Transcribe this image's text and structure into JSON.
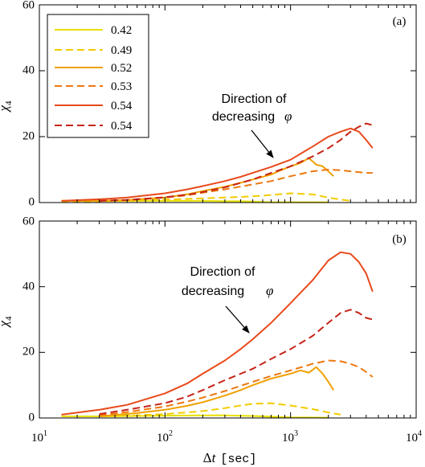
{
  "chart_data": [
    {
      "type": "line",
      "panel_label": "(a)",
      "xlabel_delta": "Δ",
      "xlabel_var": "t",
      "xlabel_unit": "[sec]",
      "ylabel_main": "χ",
      "ylabel_sub": "4",
      "x_scale": "log",
      "xlim": [
        10,
        10000
      ],
      "ylim": [
        0,
        60
      ],
      "yticks": [
        "0",
        "20",
        "40",
        "60"
      ],
      "xticks_base": [
        "10",
        "10",
        "10",
        "10"
      ],
      "xticks_exp": [
        "1",
        "2",
        "3",
        "4"
      ],
      "grid": false,
      "legend_placement": "top-left",
      "annotation": {
        "line1": "Direction of",
        "line2": "decreasing",
        "symbol": "φ"
      },
      "series": [
        {
          "name": "0.42",
          "color": "#e8e000",
          "dash": false,
          "x": [
            15,
            30,
            60,
            100,
            150,
            200,
            300,
            400,
            500,
            600,
            700,
            1000,
            2000
          ],
          "y": [
            0.5,
            0.5,
            0.5,
            0.5,
            0.5,
            0.5,
            0.4,
            0.4,
            0.3,
            0.2,
            0.1,
            0.1,
            0.1
          ]
        },
        {
          "name": "0.49",
          "color": "#f2cc00",
          "dash": true,
          "x": [
            15,
            30,
            60,
            100,
            150,
            200,
            300,
            500,
            700,
            1000,
            1500,
            2000,
            2500,
            3000
          ],
          "y": [
            0.3,
            0.4,
            0.6,
            0.9,
            1.1,
            1.3,
            1.5,
            1.9,
            2.3,
            2.8,
            2.5,
            1.5,
            0.9,
            0.5
          ]
        },
        {
          "name": "0.52",
          "color": "#f0a000",
          "dash": false,
          "x": [
            15,
            30,
            50,
            100,
            150,
            200,
            300,
            400,
            500,
            700,
            800,
            1000,
            1200,
            1400,
            1600,
            1800,
            2000,
            2200
          ],
          "y": [
            0.5,
            0.5,
            0.8,
            1.5,
            2.5,
            3.5,
            4.8,
            6,
            7,
            8.5,
            9.5,
            11,
            12,
            13.5,
            11.5,
            11,
            9.5,
            8
          ]
        },
        {
          "name": "0.53",
          "color": "#ec7810",
          "dash": true,
          "x": [
            30,
            50,
            100,
            150,
            200,
            300,
            500,
            700,
            1000,
            1500,
            2000,
            2500,
            3000,
            4000,
            4500
          ],
          "y": [
            0.5,
            0.7,
            1.5,
            2.2,
            3,
            4,
            5.5,
            6.5,
            8,
            9.5,
            10,
            9.8,
            9.5,
            9,
            9
          ]
        },
        {
          "name": "0.54",
          "color": "#e84a1c",
          "dash": false,
          "x": [
            15,
            30,
            50,
            100,
            150,
            200,
            300,
            400,
            500,
            700,
            1000,
            1500,
            2000,
            2500,
            3000,
            3500,
            4000,
            4500
          ],
          "y": [
            0.5,
            1,
            1.5,
            2.8,
            4,
            5,
            6.5,
            7.8,
            9,
            10.8,
            13,
            17,
            20,
            21.5,
            22.5,
            21.5,
            19,
            16.5
          ]
        },
        {
          "name": "0.54",
          "color": "#c62418",
          "dash": true,
          "x": [
            30,
            50,
            100,
            150,
            200,
            300,
            500,
            700,
            1000,
            1500,
            2000,
            2500,
            3000,
            3500,
            4000,
            4500
          ],
          "y": [
            0.5,
            0.8,
            1.6,
            2.4,
            3.2,
            4.6,
            7,
            9,
            11,
            14,
            16.5,
            19,
            21.5,
            23,
            24,
            23.5
          ]
        }
      ]
    },
    {
      "type": "line",
      "panel_label": "(b)",
      "xlabel_delta": "Δ",
      "xlabel_var": "t",
      "xlabel_unit": "[sec]",
      "ylabel_main": "χ",
      "ylabel_sub": "4",
      "x_scale": "log",
      "xlim": [
        10,
        10000
      ],
      "ylim": [
        0,
        60
      ],
      "yticks": [
        "0",
        "20",
        "40",
        "60"
      ],
      "xticks_base": [
        "10",
        "10",
        "10",
        "10"
      ],
      "xticks_exp": [
        "1",
        "2",
        "3",
        "4"
      ],
      "grid": false,
      "annotation": {
        "line1": "Direction of",
        "line2": "decreasing",
        "symbol": "φ"
      },
      "series": [
        {
          "name": "0.42",
          "color": "#e8e000",
          "dash": false,
          "x": [
            15,
            30,
            60,
            100,
            200,
            300,
            500,
            700,
            1000,
            2000
          ],
          "y": [
            0.5,
            0.5,
            0.6,
            0.7,
            0.8,
            0.8,
            0.6,
            0.4,
            0.2,
            0.1
          ]
        },
        {
          "name": "0.49",
          "color": "#f2cc00",
          "dash": true,
          "x": [
            30,
            60,
            100,
            150,
            200,
            300,
            400,
            500,
            700,
            1000,
            1500,
            2000,
            2500
          ],
          "y": [
            0.5,
            0.8,
            1.2,
            1.7,
            2.1,
            3,
            3.8,
            4.3,
            4.5,
            3.8,
            2.7,
            1.7,
            1
          ]
        },
        {
          "name": "0.52",
          "color": "#f0a000",
          "dash": false,
          "x": [
            30,
            60,
            100,
            150,
            200,
            300,
            400,
            500,
            700,
            1000,
            1200,
            1400,
            1600,
            1800,
            2000,
            2200
          ],
          "y": [
            0.5,
            1.5,
            2.5,
            3.7,
            4.8,
            6.8,
            8.5,
            10,
            12,
            13.5,
            14.5,
            13.8,
            15.5,
            13.5,
            11,
            8.5
          ]
        },
        {
          "name": "0.53",
          "color": "#ec7810",
          "dash": true,
          "x": [
            30,
            50,
            100,
            150,
            200,
            300,
            500,
            700,
            1000,
            1500,
            2000,
            2500,
            3000,
            3500,
            4000,
            4500
          ],
          "y": [
            0.8,
            1.8,
            3.5,
            5,
            6.2,
            8.2,
            11,
            12.8,
            14.5,
            16.5,
            17.5,
            17.3,
            16.5,
            15.5,
            14,
            12.5
          ]
        },
        {
          "name": "0.54",
          "color": "#e84a1c",
          "dash": false,
          "x": [
            15,
            30,
            50,
            100,
            150,
            200,
            300,
            400,
            500,
            700,
            1000,
            1500,
            2000,
            2500,
            3000,
            3500,
            4000,
            4500
          ],
          "y": [
            1,
            2.5,
            4,
            7.5,
            10.5,
            13.5,
            17.5,
            21,
            24,
            29,
            35,
            42,
            48,
            50.5,
            50,
            47.5,
            44,
            38.5
          ]
        },
        {
          "name": "0.54",
          "color": "#c62418",
          "dash": true,
          "x": [
            30,
            50,
            100,
            150,
            200,
            300,
            500,
            700,
            1000,
            1500,
            2000,
            2500,
            3000,
            3500,
            4000,
            4500
          ],
          "y": [
            1.2,
            2.5,
            4.5,
            6.5,
            8.5,
            11.5,
            15,
            18,
            21,
            25,
            29,
            32,
            33,
            32,
            30.5,
            30
          ]
        }
      ]
    }
  ]
}
